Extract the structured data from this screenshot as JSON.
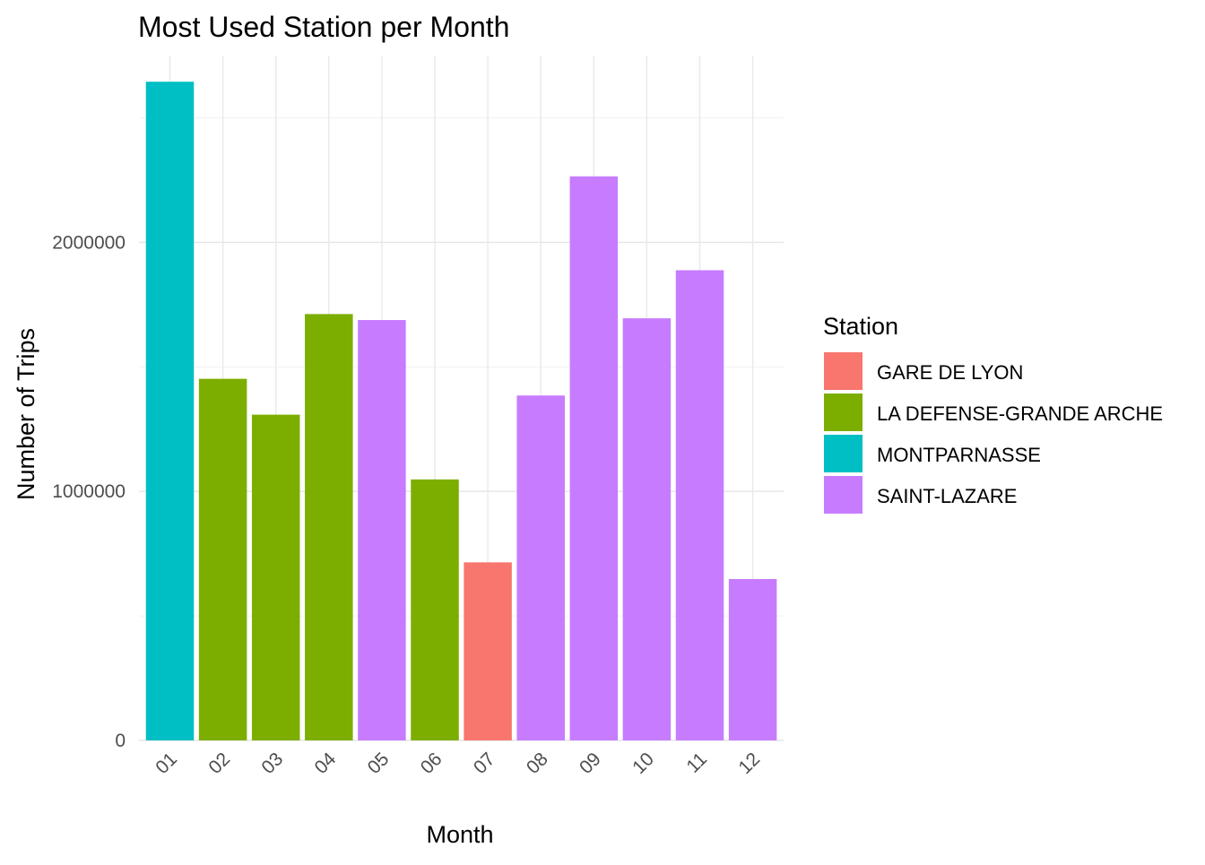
{
  "chart_data": {
    "type": "bar",
    "title": "Most Used Station per Month",
    "xlabel": "Month",
    "ylabel": "Number of Trips",
    "categories": [
      "01",
      "02",
      "03",
      "04",
      "05",
      "06",
      "07",
      "08",
      "09",
      "10",
      "11",
      "12"
    ],
    "values": [
      2645000,
      1452000,
      1308000,
      1712000,
      1688000,
      1048000,
      715000,
      1385000,
      2265000,
      1695000,
      1888000,
      648000
    ],
    "stations": [
      "MONTPARNASSE",
      "LA DEFENSE-GRANDE ARCHE",
      "LA DEFENSE-GRANDE ARCHE",
      "LA DEFENSE-GRANDE ARCHE",
      "SAINT-LAZARE",
      "LA DEFENSE-GRANDE ARCHE",
      "GARE DE LYON",
      "SAINT-LAZARE",
      "SAINT-LAZARE",
      "SAINT-LAZARE",
      "SAINT-LAZARE",
      "SAINT-LAZARE"
    ],
    "ylim": [
      0,
      2750000
    ],
    "yticks": [
      0,
      1000000,
      2000000
    ],
    "ytick_labels": [
      "0",
      "1000000",
      "2000000"
    ],
    "grid": true,
    "legend": {
      "title": "Station",
      "position": "right",
      "entries": [
        {
          "name": "GARE DE LYON",
          "color": "#F8766D"
        },
        {
          "name": "LA DEFENSE-GRANDE ARCHE",
          "color": "#7CAE00"
        },
        {
          "name": "MONTPARNASSE",
          "color": "#00BFC4"
        },
        {
          "name": "SAINT-LAZARE",
          "color": "#C77CFF"
        }
      ]
    }
  }
}
